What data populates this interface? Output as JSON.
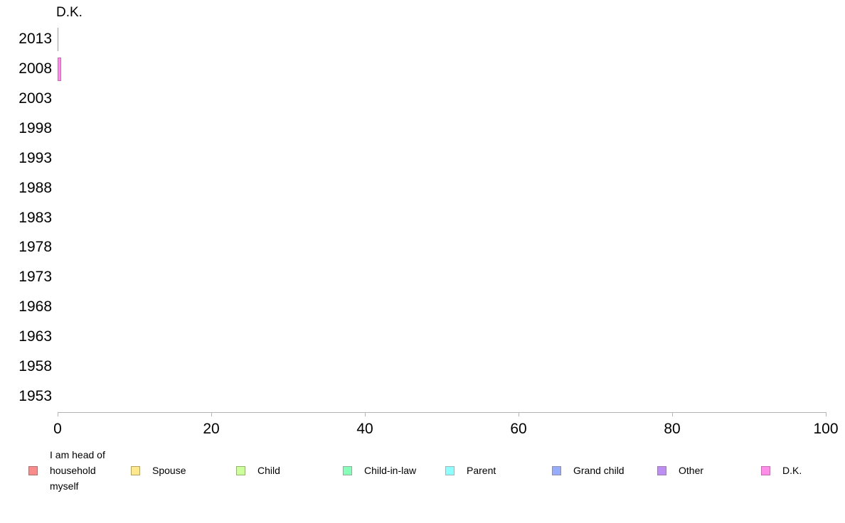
{
  "chart_data": {
    "type": "bar",
    "orientation": "horizontal",
    "title": "D.K.",
    "categories": [
      "2013",
      "2008",
      "2003",
      "1998",
      "1993",
      "1988",
      "1983",
      "1978",
      "1973",
      "1968",
      "1963",
      "1958",
      "1953"
    ],
    "series": [
      {
        "name": "D.K.",
        "fill": "#ff8ce6",
        "border": "#db5ebd",
        "zero_line_color": "#999999",
        "values": [
          0,
          0.5,
          null,
          null,
          null,
          null,
          null,
          null,
          null,
          null,
          null,
          null,
          null
        ]
      }
    ],
    "xlabel": "",
    "ylabel": "",
    "xlim": [
      0,
      100
    ],
    "x_ticks": [
      "0",
      "20",
      "40",
      "60",
      "80",
      "100"
    ],
    "grid": false,
    "axis_color": "#b3b3b3",
    "legend_position": "bottom",
    "legend": [
      {
        "label": "I am head of household myself",
        "color": "#f98b8b",
        "border": "#ab7070"
      },
      {
        "label": "Spouse",
        "color": "#ffe98c",
        "border": "#b0a363"
      },
      {
        "label": "Child",
        "color": "#cdff9c",
        "border": "#93b270"
      },
      {
        "label": "Child-in-law",
        "color": "#87ffb8",
        "border": "#8fae9c"
      },
      {
        "label": "Parent",
        "color": "#8dffff",
        "border": "#9db5b5"
      },
      {
        "label": "Grand child",
        "color": "#96acfc",
        "border": "#8d8dac"
      },
      {
        "label": "Other",
        "color": "#bd8ff2",
        "border": "#9a7dad"
      },
      {
        "label": "D.K.",
        "color": "#ff8de9",
        "border": "#bd6fae"
      }
    ]
  }
}
